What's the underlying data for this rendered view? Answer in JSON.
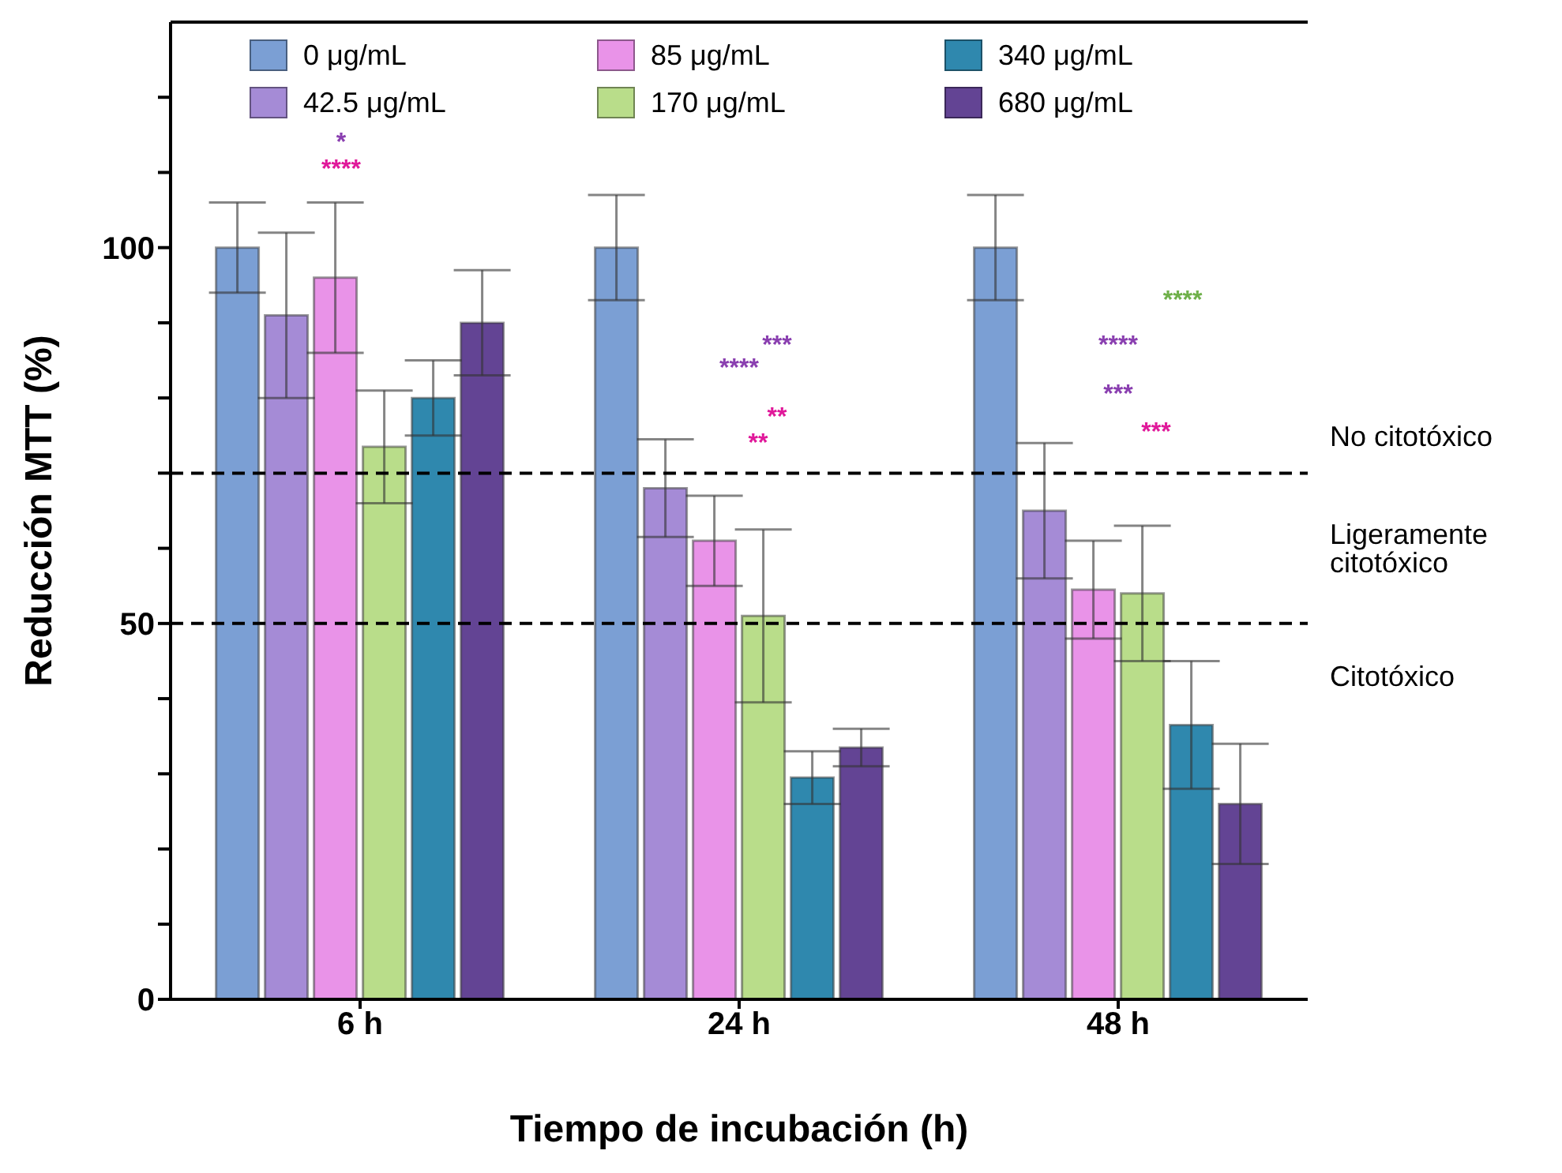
{
  "chart_data": {
    "type": "bar",
    "xlabel": "Tiempo de incubación (h)",
    "ylabel": "Reducción MTT (%)",
    "categories": [
      "6 h",
      "24 h",
      "48 h"
    ],
    "series": [
      {
        "name": "0 μg/mL",
        "color": "#7b9fd4",
        "values": [
          100,
          100,
          100
        ],
        "errors": [
          6,
          7,
          7
        ]
      },
      {
        "name": "42.5 μg/mL",
        "color": "#a58bd6",
        "values": [
          91,
          68,
          65
        ],
        "errors": [
          11,
          6.5,
          9
        ]
      },
      {
        "name": "85 μg/mL",
        "color": "#e993e8",
        "values": [
          96,
          61,
          54.5
        ],
        "errors": [
          10,
          6,
          6.5
        ]
      },
      {
        "name": "170 μg/mL",
        "color": "#b9dd8a",
        "values": [
          73.5,
          51,
          54
        ],
        "errors": [
          7.5,
          11.5,
          9
        ]
      },
      {
        "name": "340 μg/mL",
        "color": "#2f88ae",
        "values": [
          80,
          29.5,
          36.5
        ],
        "errors": [
          5,
          3.5,
          8.5
        ]
      },
      {
        "name": "680 μg/mL",
        "color": "#634494",
        "values": [
          90,
          33.5,
          26
        ],
        "errors": [
          7,
          2.5,
          8
        ]
      }
    ],
    "ylim": [
      0,
      130
    ],
    "yticks": [
      0,
      {
        "value": 10,
        "label": null
      },
      {
        "value": 20,
        "label": null
      },
      {
        "value": 30,
        "label": null
      },
      {
        "value": 40,
        "label": null
      },
      50,
      {
        "value": 60,
        "label": null
      },
      {
        "value": 70,
        "label": null
      },
      {
        "value": 80,
        "label": null
      },
      {
        "value": 90,
        "label": null
      },
      100,
      {
        "value": 110,
        "label": null
      },
      {
        "value": 120,
        "label": null
      }
    ],
    "ref_lines": [
      {
        "axis": "y",
        "value": 70,
        "line_style": "dashed",
        "color": "#000000"
      },
      {
        "axis": "y",
        "value": 50,
        "line_style": "dashed",
        "color": "#000000"
      }
    ],
    "annotations": [
      "No citotóxico",
      "Ligeramente citotóxico",
      "Citotóxico",
      "*",
      "****",
      "***",
      "****",
      "**",
      "**",
      "****",
      "****",
      "***",
      "***"
    ],
    "legend": "top",
    "grid": false
  }
}
